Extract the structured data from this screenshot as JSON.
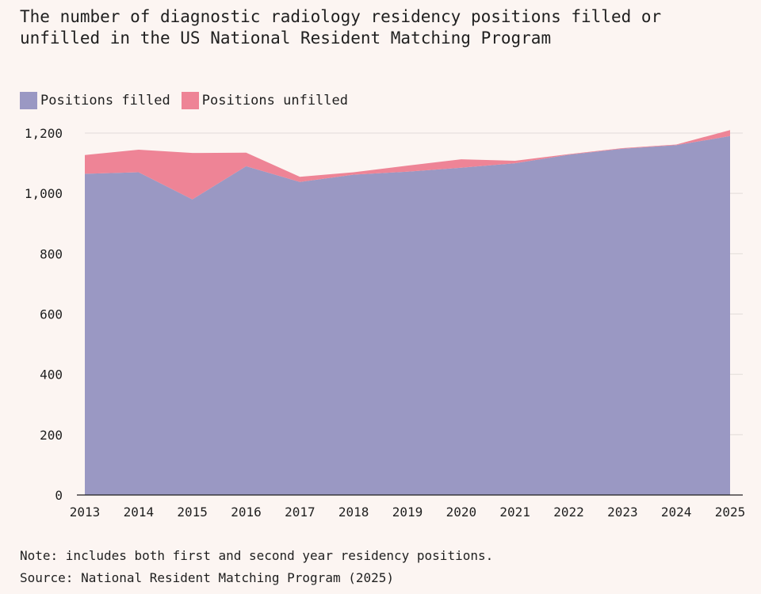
{
  "title": "The number of diagnostic radiology residency positions filled or unfilled in the US National Resident Matching Program",
  "legend": [
    {
      "label": "Positions filled",
      "color": "#9a98c3"
    },
    {
      "label": "Positions unfilled",
      "color": "#ee8496"
    }
  ],
  "note": "Note: includes both first and second year residency positions.",
  "source": "Source: National Resident Matching Program (2025)",
  "chart_data": {
    "type": "area",
    "stacked": true,
    "x": [
      "2013",
      "2014",
      "2015",
      "2016",
      "2017",
      "2018",
      "2019",
      "2020",
      "2021",
      "2022",
      "2023",
      "2024",
      "2025"
    ],
    "series": [
      {
        "name": "Positions filled",
        "color": "#9a98c3",
        "values": [
          1065,
          1070,
          980,
          1090,
          1038,
          1062,
          1072,
          1085,
          1100,
          1128,
          1148,
          1160,
          1190
        ]
      },
      {
        "name": "Positions unfilled",
        "color": "#ee8496",
        "values": [
          62,
          75,
          154,
          45,
          17,
          8,
          20,
          28,
          8,
          2,
          2,
          2,
          20
        ]
      }
    ],
    "ylim": [
      0,
      1200
    ],
    "yticks": [
      0,
      200,
      400,
      600,
      800,
      1000,
      1200
    ],
    "ytick_labels": [
      "0",
      "200",
      "400",
      "600",
      "800",
      "1,000",
      "1,200"
    ],
    "grid": true,
    "legend_position": "top-left",
    "xlabel": "",
    "ylabel": ""
  }
}
